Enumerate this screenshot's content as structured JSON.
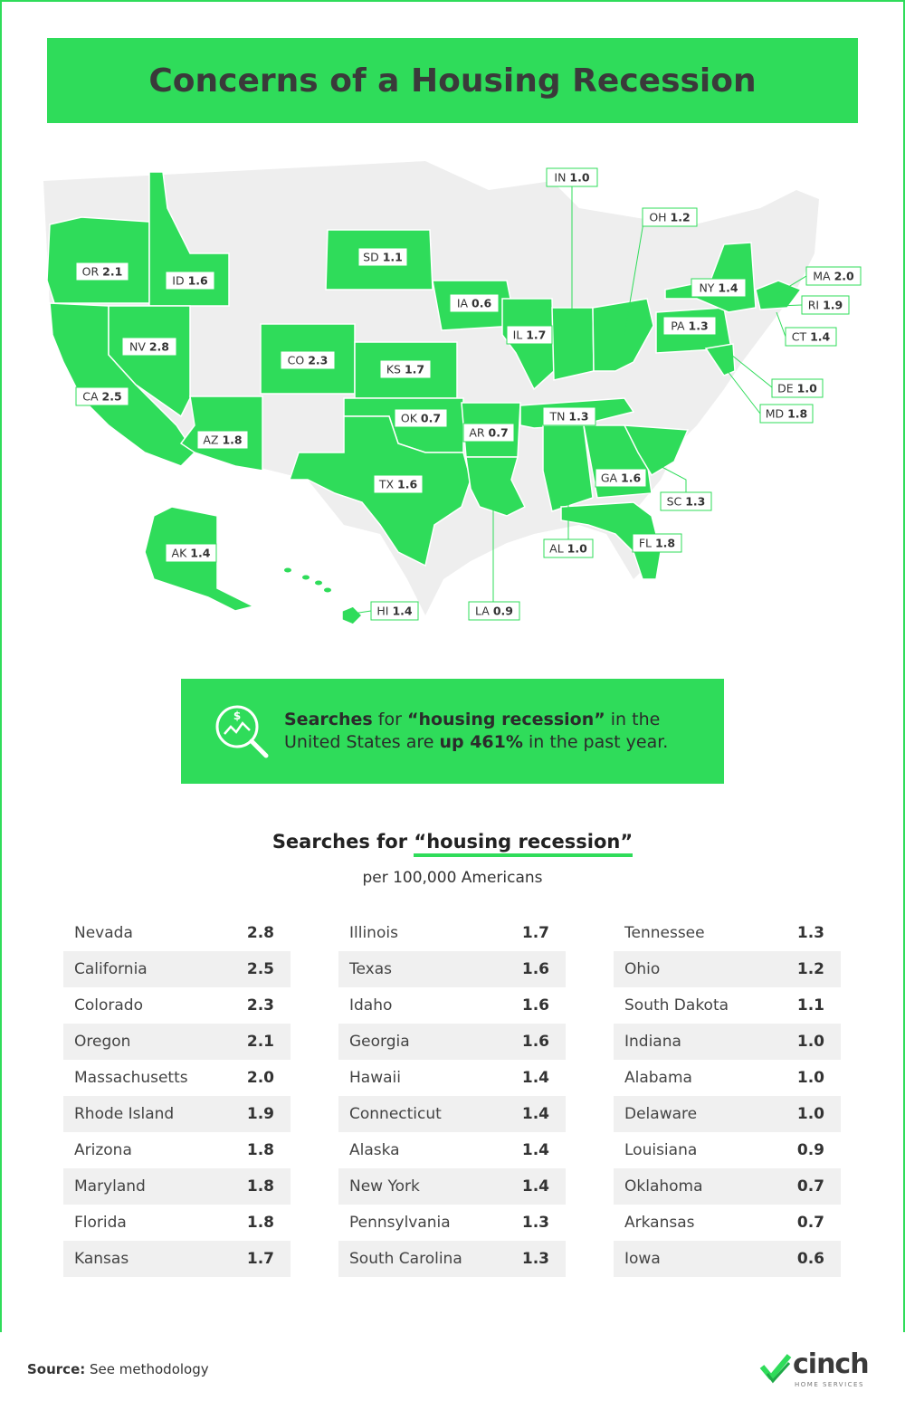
{
  "title": "Concerns of a Housing Recession",
  "colors": {
    "accent": "#2fdc5a",
    "land": "#eeeeee",
    "border": "#ffffff"
  },
  "map": {
    "labels": [
      {
        "abbr": "IN",
        "value": "1.0"
      },
      {
        "abbr": "OH",
        "value": "1.2"
      },
      {
        "abbr": "SD",
        "value": "1.1"
      },
      {
        "abbr": "OR",
        "value": "2.1"
      },
      {
        "abbr": "ID",
        "value": "1.6"
      },
      {
        "abbr": "IA",
        "value": "0.6"
      },
      {
        "abbr": "NY",
        "value": "1.4"
      },
      {
        "abbr": "MA",
        "value": "2.0"
      },
      {
        "abbr": "RI",
        "value": "1.9"
      },
      {
        "abbr": "IL",
        "value": "1.7"
      },
      {
        "abbr": "PA",
        "value": "1.3"
      },
      {
        "abbr": "CT",
        "value": "1.4"
      },
      {
        "abbr": "NV",
        "value": "2.8"
      },
      {
        "abbr": "CO",
        "value": "2.3"
      },
      {
        "abbr": "KS",
        "value": "1.7"
      },
      {
        "abbr": "DE",
        "value": "1.0"
      },
      {
        "abbr": "CA",
        "value": "2.5"
      },
      {
        "abbr": "MD",
        "value": "1.8"
      },
      {
        "abbr": "OK",
        "value": "0.7"
      },
      {
        "abbr": "TN",
        "value": "1.3"
      },
      {
        "abbr": "AR",
        "value": "0.7"
      },
      {
        "abbr": "AZ",
        "value": "1.8"
      },
      {
        "abbr": "GA",
        "value": "1.6"
      },
      {
        "abbr": "TX",
        "value": "1.6"
      },
      {
        "abbr": "SC",
        "value": "1.3"
      },
      {
        "abbr": "AL",
        "value": "1.0"
      },
      {
        "abbr": "FL",
        "value": "1.8"
      },
      {
        "abbr": "AK",
        "value": "1.4"
      },
      {
        "abbr": "HI",
        "value": "1.4"
      },
      {
        "abbr": "LA",
        "value": "0.9"
      }
    ]
  },
  "callout": {
    "bold1": "Searches",
    "text1": " for ",
    "bold2": "“housing recession”",
    "text2": " in the",
    "text3": "United States are ",
    "bold3": "up 461%",
    "text4": " in the past year.",
    "icon": "magnifier-chart-icon"
  },
  "table": {
    "title_pre": "Searches for ",
    "title_hl": "“housing recession”",
    "caption": "per 100,000 Americans",
    "columns": [
      [
        {
          "state": "Nevada",
          "value": "2.8"
        },
        {
          "state": "California",
          "value": "2.5"
        },
        {
          "state": "Colorado",
          "value": "2.3"
        },
        {
          "state": "Oregon",
          "value": "2.1"
        },
        {
          "state": "Massachusetts",
          "value": "2.0"
        },
        {
          "state": "Rhode Island",
          "value": "1.9"
        },
        {
          "state": "Arizona",
          "value": "1.8"
        },
        {
          "state": "Maryland",
          "value": "1.8"
        },
        {
          "state": "Florida",
          "value": "1.8"
        },
        {
          "state": "Kansas",
          "value": "1.7"
        }
      ],
      [
        {
          "state": "Illinois",
          "value": "1.7"
        },
        {
          "state": "Texas",
          "value": "1.6"
        },
        {
          "state": "Idaho",
          "value": "1.6"
        },
        {
          "state": "Georgia",
          "value": "1.6"
        },
        {
          "state": "Hawaii",
          "value": "1.4"
        },
        {
          "state": "Connecticut",
          "value": "1.4"
        },
        {
          "state": "Alaska",
          "value": "1.4"
        },
        {
          "state": "New York",
          "value": "1.4"
        },
        {
          "state": "Pennsylvania",
          "value": "1.3"
        },
        {
          "state": "South Carolina",
          "value": "1.3"
        }
      ],
      [
        {
          "state": "Tennessee",
          "value": "1.3"
        },
        {
          "state": "Ohio",
          "value": "1.2"
        },
        {
          "state": "South Dakota",
          "value": "1.1"
        },
        {
          "state": "Indiana",
          "value": "1.0"
        },
        {
          "state": "Alabama",
          "value": "1.0"
        },
        {
          "state": "Delaware",
          "value": "1.0"
        },
        {
          "state": "Louisiana",
          "value": "0.9"
        },
        {
          "state": "Oklahoma",
          "value": "0.7"
        },
        {
          "state": "Arkansas",
          "value": "0.7"
        },
        {
          "state": "Iowa",
          "value": "0.6"
        }
      ]
    ]
  },
  "footer": {
    "source_label": "Source:",
    "source_text": " See methodology",
    "logo_word": "cinch",
    "logo_sub": "HOME SERVICES"
  }
}
